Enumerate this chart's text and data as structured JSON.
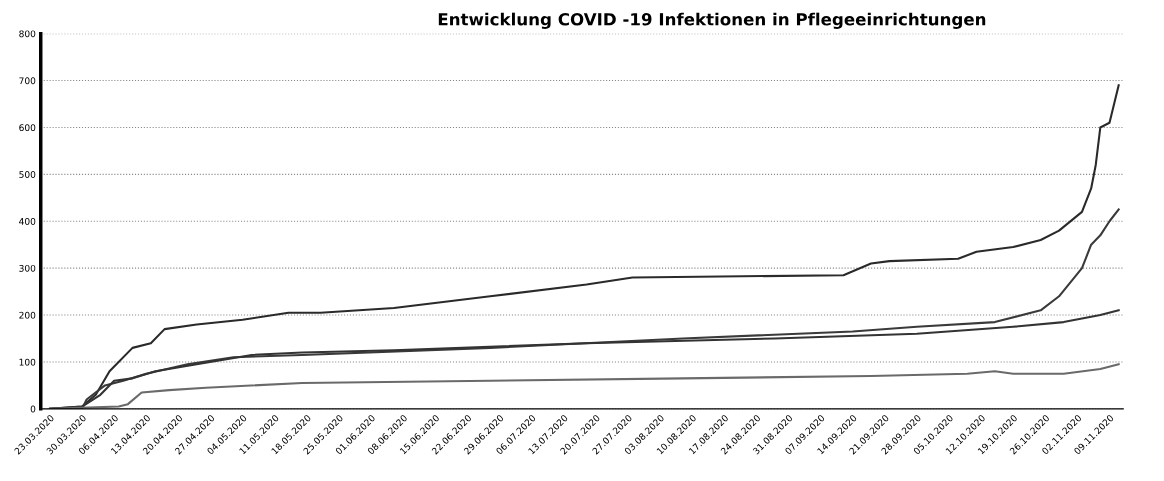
{
  "chart_data": {
    "type": "line",
    "title": "Entwicklung COVID -19 Infektionen in Pflegeeinrichtungen",
    "xlim": [
      "2020-03-21",
      "2020-11-12"
    ],
    "xticks": [
      {
        "value": "2020-03-23",
        "label": "23.03.2020"
      },
      {
        "value": "2020-03-30",
        "label": "30.03.2020"
      },
      {
        "value": "2020-04-06",
        "label": "06.04.2020"
      },
      {
        "value": "2020-04-13",
        "label": "13.04.2020"
      },
      {
        "value": "2020-04-20",
        "label": "20.04.2020"
      },
      {
        "value": "2020-04-27",
        "label": "27.04.2020"
      },
      {
        "value": "2020-05-04",
        "label": "04.05.2020"
      },
      {
        "value": "2020-05-11",
        "label": "11.05.2020"
      },
      {
        "value": "2020-05-18",
        "label": "18.05.2020"
      },
      {
        "value": "2020-05-25",
        "label": "25.05.2020"
      },
      {
        "value": "2020-06-01",
        "label": "01.06.2020"
      },
      {
        "value": "2020-06-08",
        "label": "08.06.2020"
      },
      {
        "value": "2020-06-15",
        "label": "15.06.2020"
      },
      {
        "value": "2020-06-22",
        "label": "22.06.2020"
      },
      {
        "value": "2020-06-29",
        "label": "29.06.2020"
      },
      {
        "value": "2020-07-06",
        "label": "06.07.2020"
      },
      {
        "value": "2020-07-13",
        "label": "13.07.2020"
      },
      {
        "value": "2020-07-20",
        "label": "20.07.2020"
      },
      {
        "value": "2020-07-27",
        "label": "27.07.2020"
      },
      {
        "value": "2020-08-03",
        "label": "03.08.2020"
      },
      {
        "value": "2020-08-10",
        "label": "10.08.2020"
      },
      {
        "value": "2020-08-17",
        "label": "17.08.2020"
      },
      {
        "value": "2020-08-24",
        "label": "24.08.2020"
      },
      {
        "value": "2020-08-31",
        "label": "31.08.2020"
      },
      {
        "value": "2020-09-07",
        "label": "07.09.2020"
      },
      {
        "value": "2020-09-14",
        "label": "14.09.2020"
      },
      {
        "value": "2020-09-21",
        "label": "21.09.2020"
      },
      {
        "value": "2020-09-28",
        "label": "28.09.2020"
      },
      {
        "value": "2020-10-05",
        "label": "05.10.2020"
      },
      {
        "value": "2020-10-12",
        "label": "12.10.2020"
      },
      {
        "value": "2020-10-19",
        "label": "19.10.2020"
      },
      {
        "value": "2020-10-26",
        "label": "26.10.2020"
      },
      {
        "value": "2020-11-02",
        "label": "02.11.2020"
      },
      {
        "value": "2020-11-09",
        "label": "09.11.2020"
      }
    ],
    "ylim": [
      0,
      800
    ],
    "yticks": [
      0,
      100,
      200,
      300,
      400,
      500,
      600,
      700,
      800
    ],
    "grid": "y",
    "line_style": "solid",
    "series": [
      {
        "color": "#2a2a2a",
        "x": [
          "2020-03-23",
          "2020-03-30",
          "2020-04-02",
          "2020-04-05",
          "2020-04-10",
          "2020-04-14",
          "2020-04-17",
          "2020-04-24",
          "2020-05-04",
          "2020-05-14",
          "2020-05-21",
          "2020-06-06",
          "2020-06-27",
          "2020-07-18",
          "2020-07-28",
          "2020-09-12",
          "2020-09-18",
          "2020-09-22",
          "2020-10-07",
          "2020-10-11",
          "2020-10-19",
          "2020-10-25",
          "2020-10-29",
          "2020-11-03",
          "2020-11-05",
          "2020-11-06",
          "2020-11-07",
          "2020-11-09",
          "2020-11-11"
        ],
        "values": [
          0,
          5,
          30,
          80,
          130,
          140,
          170,
          180,
          190,
          205,
          205,
          215,
          240,
          265,
          280,
          285,
          310,
          315,
          320,
          335,
          345,
          360,
          380,
          420,
          470,
          520,
          600,
          610,
          690
        ]
      },
      {
        "color": "#3a3a3a",
        "x": [
          "2020-03-23",
          "2020-03-30",
          "2020-03-31",
          "2020-04-04",
          "2020-04-08",
          "2020-04-13",
          "2020-04-22",
          "2020-05-02",
          "2020-05-17",
          "2020-06-27",
          "2020-08-08",
          "2020-09-14",
          "2020-09-28",
          "2020-10-15",
          "2020-10-25",
          "2020-10-29",
          "2020-11-03",
          "2020-11-05",
          "2020-11-07",
          "2020-11-09",
          "2020-11-11"
        ],
        "values": [
          0,
          0,
          20,
          50,
          60,
          75,
          95,
          110,
          115,
          130,
          150,
          165,
          175,
          185,
          210,
          240,
          300,
          350,
          370,
          400,
          425
        ]
      },
      {
        "color": "#333333",
        "x": [
          "2020-03-23",
          "2020-03-30",
          "2020-04-03",
          "2020-04-06",
          "2020-04-10",
          "2020-04-15",
          "2020-04-24",
          "2020-05-06",
          "2020-05-17",
          "2020-06-06",
          "2020-07-18",
          "2020-08-28",
          "2020-09-28",
          "2020-10-19",
          "2020-10-30",
          "2020-11-07",
          "2020-11-11"
        ],
        "values": [
          0,
          5,
          30,
          60,
          65,
          80,
          95,
          115,
          120,
          125,
          140,
          150,
          160,
          175,
          185,
          200,
          210
        ]
      },
      {
        "color": "#6a6a6a",
        "x": [
          "2020-03-23",
          "2020-04-07",
          "2020-04-09",
          "2020-04-12",
          "2020-04-18",
          "2020-04-26",
          "2020-05-17",
          "2020-06-27",
          "2020-08-08",
          "2020-09-18",
          "2020-10-09",
          "2020-10-15",
          "2020-10-19",
          "2020-10-30",
          "2020-11-07",
          "2020-11-11"
        ],
        "values": [
          0,
          5,
          10,
          35,
          40,
          45,
          55,
          60,
          65,
          70,
          75,
          80,
          75,
          75,
          85,
          95
        ]
      }
    ]
  }
}
